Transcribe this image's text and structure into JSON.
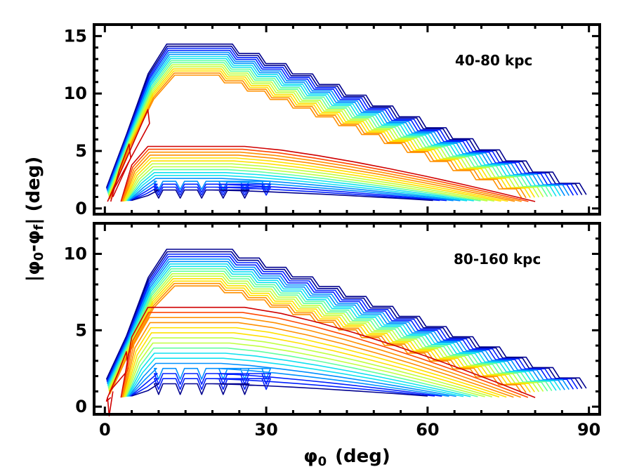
{
  "chart_data": {
    "type": "line",
    "shared_xlabel": {
      "main": "φ",
      "sub": "0",
      "unit": "(deg)"
    },
    "shared_ylabel": {
      "prefix": "|φ",
      "sub1": "0",
      "mid": "-φ",
      "sub2": "f",
      "suffix": "| (deg)"
    },
    "xlim": [
      -2,
      92
    ],
    "xticks": [
      0,
      30,
      60,
      90
    ],
    "x_minor_step": 5,
    "colormap": [
      "#00008f",
      "#0020ff",
      "#0090ff",
      "#10e0f0",
      "#60ffa0",
      "#c0ff40",
      "#ffe000",
      "#ff9000",
      "#ff4800",
      "#d00000"
    ],
    "panels": [
      {
        "label": "40-80 kpc",
        "ylim": [
          -0.5,
          16
        ],
        "yticks": [
          0,
          5,
          10,
          15
        ],
        "y_minor_step": 1,
        "upper_family": {
          "count": 16,
          "peak": 14.3,
          "peak_min": 11.6,
          "rise_end": 11.5,
          "flat_end": 20,
          "tail_end": 89.5,
          "tail_val": 1.2,
          "inner_count": 2
        },
        "lower_family": {
          "count": 16,
          "peak": 5.4,
          "peak_min": 1.6,
          "start": 3,
          "flat_end": 20,
          "end_max": 80,
          "end_min": 61
        }
      },
      {
        "label": "80-160 kpc",
        "ylim": [
          -0.5,
          12
        ],
        "yticks": [
          0,
          5,
          10
        ],
        "y_minor_step": 1,
        "upper_family": {
          "count": 16,
          "peak": 10.3,
          "peak_min": 7.9,
          "rise_end": 11.5,
          "flat_end": 20,
          "tail_end": 89.5,
          "tail_val": 1.2,
          "inner_count": 2
        },
        "lower_family": {
          "count": 16,
          "peak": 6.5,
          "peak_min": 1.5,
          "start": 3,
          "flat_end": 20,
          "end_max": 80,
          "end_min": 60
        }
      }
    ]
  }
}
